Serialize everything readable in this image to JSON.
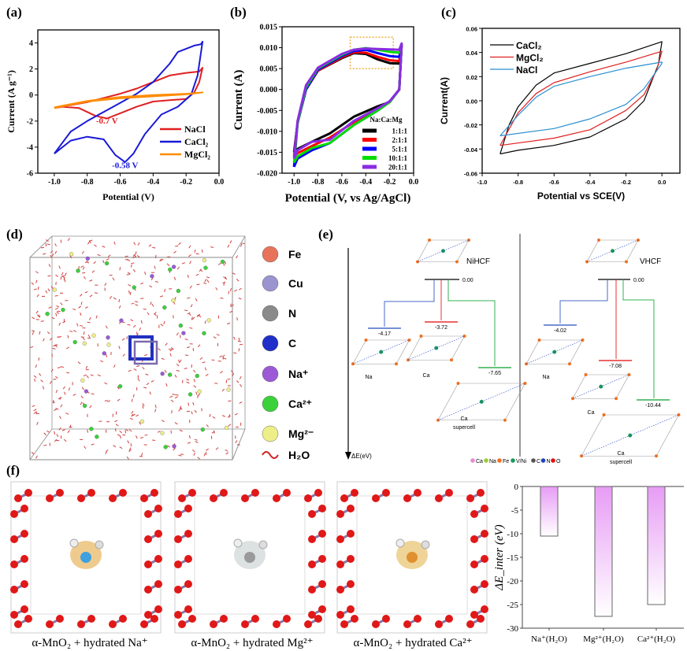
{
  "panel_labels": [
    "(a)",
    "(b)",
    "(c)",
    "(d)",
    "(e)",
    "(f)"
  ],
  "chart_data": [
    {
      "id": "a",
      "type": "line",
      "xlabel": "Potential (V)",
      "ylabel": "Current (A g⁻¹)",
      "xlim": [
        -1.1,
        0.0
      ],
      "ylim": [
        -6,
        5
      ],
      "xticks": [
        -1.0,
        -0.8,
        -0.6,
        -0.4,
        -0.2,
        0.0
      ],
      "xtick_labels": [
        "-1.0",
        "-0.8",
        "-0.6",
        "-0.4",
        "-0.2",
        "0.0"
      ],
      "yticks": [
        -6,
        -4,
        -2,
        0,
        2,
        4
      ],
      "ytick_labels": [
        "-6",
        "-4",
        "-2",
        "0",
        "2",
        "4"
      ],
      "legend_position": "bottom-right",
      "series": [
        {
          "name": "NaCl",
          "color": "#e02020",
          "points": [
            [
              -1.0,
              -1.0
            ],
            [
              -0.8,
              -0.55
            ],
            [
              -0.6,
              0.1
            ],
            [
              -0.5,
              0.5
            ],
            [
              -0.4,
              1.0
            ],
            [
              -0.3,
              1.5
            ],
            [
              -0.2,
              1.7
            ],
            [
              -0.12,
              1.8
            ],
            [
              -0.1,
              2.1
            ],
            [
              -0.12,
              1.0
            ],
            [
              -0.15,
              0.2
            ],
            [
              -0.2,
              -0.3
            ],
            [
              -0.3,
              -0.4
            ],
            [
              -0.4,
              -0.5
            ],
            [
              -0.5,
              -0.9
            ],
            [
              -0.6,
              -1.4
            ],
            [
              -0.68,
              -1.8
            ],
            [
              -0.75,
              -1.6
            ],
            [
              -0.85,
              -1.0
            ],
            [
              -0.95,
              -0.9
            ],
            [
              -1.0,
              -1.0
            ]
          ]
        },
        {
          "name": "CaCl₂",
          "color": "#1a1ad8",
          "points": [
            [
              -1.0,
              -4.5
            ],
            [
              -0.9,
              -2.8
            ],
            [
              -0.8,
              -2.0
            ],
            [
              -0.7,
              -1.3
            ],
            [
              -0.6,
              -0.6
            ],
            [
              -0.5,
              0.1
            ],
            [
              -0.4,
              1.0
            ],
            [
              -0.3,
              2.4
            ],
            [
              -0.25,
              3.3
            ],
            [
              -0.15,
              3.8
            ],
            [
              -0.11,
              3.9
            ],
            [
              -0.1,
              4.1
            ],
            [
              -0.13,
              1.5
            ],
            [
              -0.17,
              0.0
            ],
            [
              -0.25,
              -0.9
            ],
            [
              -0.35,
              -1.5
            ],
            [
              -0.45,
              -3.0
            ],
            [
              -0.52,
              -4.5
            ],
            [
              -0.57,
              -5.15
            ],
            [
              -0.63,
              -4.6
            ],
            [
              -0.7,
              -3.4
            ],
            [
              -0.8,
              -3.2
            ],
            [
              -0.9,
              -3.5
            ],
            [
              -1.0,
              -4.5
            ]
          ]
        },
        {
          "name": "MgCl₂",
          "color": "#ff8c00",
          "points": [
            [
              -1.0,
              -0.95
            ],
            [
              -0.8,
              -0.45
            ],
            [
              -0.6,
              -0.15
            ],
            [
              -0.4,
              0.0
            ],
            [
              -0.2,
              0.1
            ],
            [
              -0.1,
              0.2
            ],
            [
              -0.2,
              0.05
            ],
            [
              -0.4,
              -0.1
            ],
            [
              -0.6,
              -0.25
            ],
            [
              -0.8,
              -0.5
            ],
            [
              -1.0,
              -1.0
            ]
          ]
        }
      ],
      "annotations": [
        {
          "text": "-0.7 V",
          "color": "#e02020",
          "x": -0.68,
          "y": -2.2
        },
        {
          "text": "-0.58 V",
          "color": "#1a1ad8",
          "x": -0.57,
          "y": -5.6
        }
      ]
    },
    {
      "id": "b",
      "type": "line",
      "xlabel": "Potential (V, vs Ag/AgCl)",
      "ylabel": "Current (A)",
      "xlim": [
        -1.1,
        0.0
      ],
      "ylim": [
        -0.02,
        0.015
      ],
      "xticks": [
        -1.0,
        -0.8,
        -0.6,
        -0.4,
        -0.2,
        0.0
      ],
      "xtick_labels": [
        "-1.0",
        "-0.8",
        "-0.6",
        "-0.4",
        "-0.2",
        "0.0"
      ],
      "yticks": [
        -0.02,
        -0.015,
        -0.01,
        -0.005,
        0.0,
        0.005,
        0.01,
        0.015
      ],
      "ytick_labels": [
        "-0.020",
        "-0.015",
        "-0.010",
        "-0.005",
        "0.000",
        "0.005",
        "0.010",
        "0.015"
      ],
      "legend_title": "Na:Ca:Mg",
      "legend_position": "bottom-right",
      "highlight_box": {
        "x": [
          -0.53,
          -0.17
        ],
        "y": [
          0.005,
          0.0125
        ]
      },
      "series": [
        {
          "name": "1:1:1",
          "color": "#000000",
          "points": [
            [
              -1.0,
              -0.015
            ],
            [
              -0.97,
              -0.008
            ],
            [
              -0.9,
              0.0
            ],
            [
              -0.8,
              0.0045
            ],
            [
              -0.6,
              0.0075
            ],
            [
              -0.5,
              0.0087
            ],
            [
              -0.4,
              0.0085
            ],
            [
              -0.3,
              0.0072
            ],
            [
              -0.2,
              0.0063
            ],
            [
              -0.12,
              0.0062
            ],
            [
              -0.1,
              0.0105
            ],
            [
              -0.12,
              0.0
            ],
            [
              -0.2,
              -0.003
            ],
            [
              -0.3,
              -0.004
            ],
            [
              -0.5,
              -0.0065
            ],
            [
              -0.7,
              -0.0105
            ],
            [
              -0.85,
              -0.0125
            ],
            [
              -0.97,
              -0.0142
            ],
            [
              -1.0,
              -0.015
            ]
          ]
        },
        {
          "name": "2:1:1",
          "color": "#ff0000",
          "points": [
            [
              -1.0,
              -0.016
            ],
            [
              -0.97,
              -0.008
            ],
            [
              -0.9,
              0.0
            ],
            [
              -0.8,
              0.0045
            ],
            [
              -0.6,
              0.0077
            ],
            [
              -0.5,
              0.0089
            ],
            [
              -0.4,
              0.0088
            ],
            [
              -0.3,
              0.0078
            ],
            [
              -0.2,
              0.007
            ],
            [
              -0.12,
              0.0068
            ],
            [
              -0.1,
              0.0107
            ],
            [
              -0.12,
              0.0
            ],
            [
              -0.2,
              -0.003
            ],
            [
              -0.3,
              -0.0045
            ],
            [
              -0.5,
              -0.0078
            ],
            [
              -0.7,
              -0.0115
            ],
            [
              -0.85,
              -0.0135
            ],
            [
              -0.97,
              -0.0152
            ],
            [
              -1.0,
              -0.016
            ]
          ]
        },
        {
          "name": "5:1:1",
          "color": "#0000ff",
          "points": [
            [
              -1.0,
              -0.0185
            ],
            [
              -0.97,
              -0.008
            ],
            [
              -0.9,
              0.0
            ],
            [
              -0.8,
              0.0047
            ],
            [
              -0.6,
              0.008
            ],
            [
              -0.5,
              0.0092
            ],
            [
              -0.4,
              0.0095
            ],
            [
              -0.3,
              0.0087
            ],
            [
              -0.2,
              0.008
            ],
            [
              -0.12,
              0.0078
            ],
            [
              -0.1,
              0.0108
            ],
            [
              -0.12,
              0.0
            ],
            [
              -0.2,
              -0.003
            ],
            [
              -0.3,
              -0.005
            ],
            [
              -0.5,
              -0.0085
            ],
            [
              -0.7,
              -0.0128
            ],
            [
              -0.85,
              -0.0145
            ],
            [
              -0.97,
              -0.0165
            ],
            [
              -1.0,
              -0.0185
            ]
          ]
        },
        {
          "name": "10:1:1",
          "color": "#00dd00",
          "points": [
            [
              -1.0,
              -0.0175
            ],
            [
              -0.97,
              -0.008
            ],
            [
              -0.9,
              0.0005
            ],
            [
              -0.8,
              0.005
            ],
            [
              -0.6,
              0.0083
            ],
            [
              -0.5,
              0.0095
            ],
            [
              -0.4,
              0.0099
            ],
            [
              -0.3,
              0.0095
            ],
            [
              -0.2,
              0.009
            ],
            [
              -0.12,
              0.0088
            ],
            [
              -0.1,
              0.0109
            ],
            [
              -0.12,
              0.0
            ],
            [
              -0.2,
              -0.003
            ],
            [
              -0.3,
              -0.005
            ],
            [
              -0.5,
              -0.0085
            ],
            [
              -0.7,
              -0.0128
            ],
            [
              -0.85,
              -0.014
            ],
            [
              -0.97,
              -0.016
            ],
            [
              -1.0,
              -0.0175
            ]
          ]
        },
        {
          "name": "20:1:1",
          "color": "#8a2be2",
          "points": [
            [
              -1.0,
              -0.0165
            ],
            [
              -0.97,
              -0.0075
            ],
            [
              -0.9,
              0.001
            ],
            [
              -0.8,
              0.0052
            ],
            [
              -0.6,
              0.0085
            ],
            [
              -0.5,
              0.0095
            ],
            [
              -0.4,
              0.0098
            ],
            [
              -0.3,
              0.0097
            ],
            [
              -0.2,
              0.0096
            ],
            [
              -0.12,
              0.0095
            ],
            [
              -0.1,
              0.011
            ],
            [
              -0.12,
              0.0
            ],
            [
              -0.2,
              -0.0028
            ],
            [
              -0.3,
              -0.0045
            ],
            [
              -0.5,
              -0.0075
            ],
            [
              -0.7,
              -0.012
            ],
            [
              -0.85,
              -0.0125
            ],
            [
              -0.97,
              -0.0145
            ],
            [
              -1.0,
              -0.0165
            ]
          ]
        }
      ]
    },
    {
      "id": "c",
      "type": "line",
      "xlabel": "Potential vs SCE(V)",
      "ylabel": "Current(A)",
      "xlim": [
        -1.0,
        0.1
      ],
      "ylim": [
        -0.06,
        0.06
      ],
      "xticks": [
        -1.0,
        -0.8,
        -0.6,
        -0.4,
        -0.2,
        0.0
      ],
      "xtick_labels": [
        "-1.0",
        "-0.8",
        "-0.6",
        "-0.4",
        "-0.2",
        "0.0"
      ],
      "yticks": [
        -0.06,
        -0.04,
        -0.02,
        0.0,
        0.02,
        0.04,
        0.06
      ],
      "ytick_labels": [
        "-0.06",
        "-0.04",
        "-0.02",
        "0.00",
        "0.02",
        "0.04",
        "0.06"
      ],
      "legend_position": "top-left",
      "series": [
        {
          "name": "CaCl₂",
          "color": "#000000",
          "points": [
            [
              -0.9,
              -0.044
            ],
            [
              -0.85,
              -0.02
            ],
            [
              -0.8,
              -0.005
            ],
            [
              -0.7,
              0.013
            ],
            [
              -0.6,
              0.023
            ],
            [
              -0.4,
              0.031
            ],
            [
              -0.2,
              0.039
            ],
            [
              0.0,
              0.049
            ],
            [
              -0.02,
              0.03
            ],
            [
              -0.1,
              0.0
            ],
            [
              -0.2,
              -0.015
            ],
            [
              -0.4,
              -0.03
            ],
            [
              -0.6,
              -0.037
            ],
            [
              -0.8,
              -0.041
            ],
            [
              -0.9,
              -0.044
            ]
          ]
        },
        {
          "name": "MgCl₂",
          "color": "#e02020",
          "points": [
            [
              -0.9,
              -0.037
            ],
            [
              -0.8,
              -0.01
            ],
            [
              -0.7,
              0.006
            ],
            [
              -0.6,
              0.015
            ],
            [
              -0.4,
              0.024
            ],
            [
              -0.2,
              0.032
            ],
            [
              0.0,
              0.041
            ],
            [
              -0.03,
              0.025
            ],
            [
              -0.1,
              0.005
            ],
            [
              -0.2,
              -0.008
            ],
            [
              -0.4,
              -0.024
            ],
            [
              -0.6,
              -0.031
            ],
            [
              -0.9,
              -0.037
            ]
          ]
        },
        {
          "name": "NaCl",
          "color": "#2a8fd0",
          "points": [
            [
              -0.9,
              -0.029
            ],
            [
              -0.8,
              -0.012
            ],
            [
              -0.7,
              0.003
            ],
            [
              -0.6,
              0.012
            ],
            [
              -0.4,
              0.02
            ],
            [
              -0.2,
              0.027
            ],
            [
              0.0,
              0.032
            ],
            [
              0.0,
              0.031
            ],
            [
              -0.1,
              0.01
            ],
            [
              -0.2,
              -0.003
            ],
            [
              -0.4,
              -0.015
            ],
            [
              -0.6,
              -0.023
            ],
            [
              -0.9,
              -0.029
            ]
          ]
        }
      ]
    },
    {
      "id": "f-bar",
      "type": "bar",
      "ylabel": "ΔE_inter (eV)",
      "categories": [
        "Na⁺(H₂O)",
        "Mg²⁺(H₂O)",
        "Ca²⁺(H₂O)"
      ],
      "values": [
        -10.5,
        -27.5,
        -25.0
      ],
      "ylim": [
        -30,
        0
      ],
      "yticks": [
        -30,
        -25,
        -20,
        -15,
        -10,
        -5,
        0
      ],
      "ytick_labels": [
        "-30",
        "-25",
        "-20",
        "-15",
        "-10",
        "-5",
        "0"
      ],
      "bar_color": "#e79cf5"
    }
  ],
  "panel_d": {
    "legend": [
      {
        "label": "Fe",
        "color": "#e8735a"
      },
      {
        "label": "Cu",
        "color": "#9a94d0"
      },
      {
        "label": "N",
        "color": "#8a8a8a"
      },
      {
        "label": "C",
        "color": "#1f2fc8"
      },
      {
        "label": "Na⁺",
        "color": "#9b59d6"
      },
      {
        "label": "Ca²⁺",
        "color": "#3ad13a"
      },
      {
        "label": "Mg²⁻",
        "color": "#eeee88"
      },
      {
        "label": "H₂O",
        "color": "#d02020"
      }
    ]
  },
  "panel_e": {
    "left_title": "NiHCF",
    "right_title": "VHCF",
    "axis_label": "ΔE(eV)",
    "left_levels": {
      "ref": "0.00",
      "na": "-4.17",
      "ca": "-3.72",
      "ca_super": "-7.65"
    },
    "right_levels": {
      "ref": "0.00",
      "na": "-4.02",
      "ca": "-7.08",
      "ca_super": "-10.44"
    },
    "structure_labels": {
      "na": "Na",
      "ca": "Ca",
      "ca_super_1": "Ca",
      "ca_super_2": "supercell"
    },
    "legend": [
      {
        "label": "Ca",
        "color": "#e88ad0"
      },
      {
        "label": "Na",
        "color": "#9acd32"
      },
      {
        "label": "Fe",
        "color": "#f07020"
      },
      {
        "label": "V/Ni",
        "color": "#1a9a5a"
      },
      {
        "label": "C",
        "color": "#555555"
      },
      {
        "label": "N",
        "color": "#2040c0"
      },
      {
        "label": "O",
        "color": "#e01010"
      }
    ]
  },
  "panel_f": {
    "captions": [
      "α-MnO₂ + hydrated Na⁺",
      "α-MnO₂ + hydrated Mg²⁺",
      "α-MnO₂ + hydrated Ca²⁺"
    ]
  }
}
